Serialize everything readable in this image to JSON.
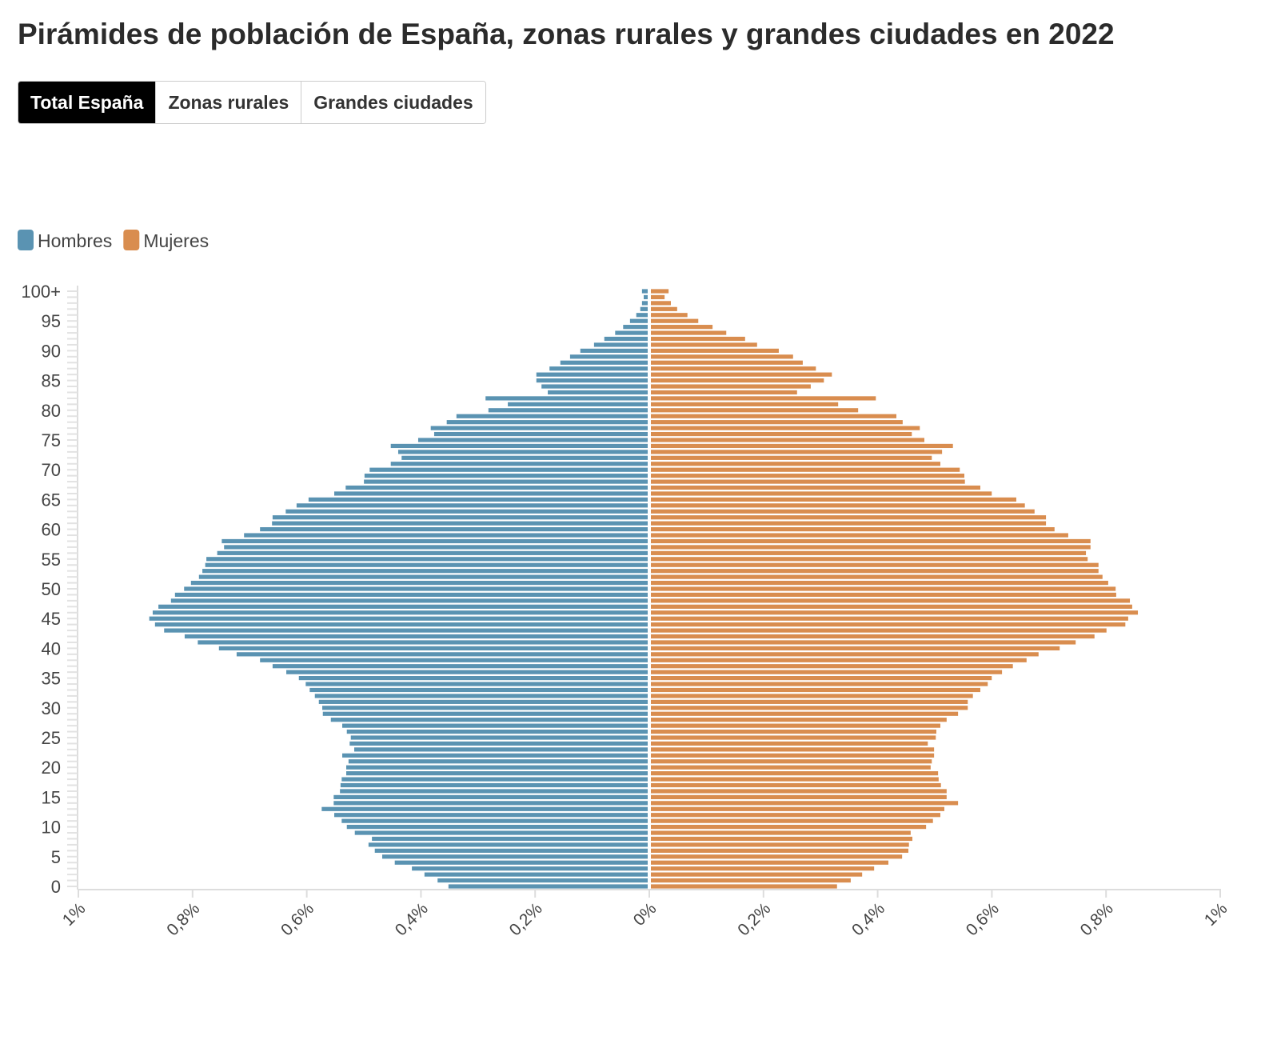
{
  "tabs": [
    "Total España",
    "Zonas rurales",
    "Grandes ciudades"
  ],
  "chart_data": {
    "type": "pyramid",
    "title": "Pirámides de población de España, zonas rurales y grandes ciudades en 2022",
    "categories": [
      "0",
      null,
      null,
      null,
      null,
      "5",
      null,
      null,
      null,
      null,
      "10",
      null,
      null,
      null,
      null,
      "15",
      null,
      null,
      null,
      null,
      "20",
      null,
      null,
      null,
      null,
      "25",
      null,
      null,
      null,
      null,
      "30",
      null,
      null,
      null,
      null,
      "35",
      null,
      null,
      null,
      null,
      "40",
      null,
      null,
      null,
      null,
      "45",
      null,
      null,
      null,
      null,
      "50",
      null,
      null,
      null,
      null,
      "55",
      null,
      null,
      null,
      null,
      "60",
      null,
      null,
      null,
      null,
      "65",
      null,
      null,
      null,
      null,
      "70",
      null,
      null,
      null,
      null,
      "75",
      null,
      null,
      null,
      null,
      "80",
      null,
      null,
      null,
      null,
      "85",
      null,
      null,
      null,
      null,
      "90",
      null,
      null,
      null,
      null,
      "95",
      null,
      null,
      null,
      null,
      "100+"
    ],
    "series": [
      {
        "name": "Hombres",
        "color": "#5a93b2",
        "side": "left",
        "values": [
          0.349,
          0.368,
          0.391,
          0.413,
          0.443,
          0.465,
          0.478,
          0.489,
          0.483,
          0.513,
          0.527,
          0.536,
          0.549,
          0.571,
          0.55,
          0.55,
          0.539,
          0.538,
          0.536,
          0.528,
          0.528,
          0.524,
          0.535,
          0.514,
          0.522,
          0.52,
          0.527,
          0.535,
          0.555,
          0.569,
          0.57,
          0.576,
          0.583,
          0.592,
          0.599,
          0.611,
          0.633,
          0.657,
          0.679,
          0.72,
          0.751,
          0.788,
          0.811,
          0.847,
          0.863,
          0.873,
          0.867,
          0.857,
          0.835,
          0.828,
          0.812,
          0.8,
          0.786,
          0.78,
          0.775,
          0.773,
          0.754,
          0.742,
          0.746,
          0.707,
          0.679,
          0.658,
          0.657,
          0.634,
          0.615,
          0.594,
          0.549,
          0.529,
          0.497,
          0.496,
          0.487,
          0.45,
          0.431,
          0.437,
          0.45,
          0.402,
          0.374,
          0.38,
          0.352,
          0.335,
          0.279,
          0.245,
          0.284,
          0.175,
          0.186,
          0.195,
          0.195,
          0.172,
          0.153,
          0.136,
          0.118,
          0.094,
          0.076,
          0.057,
          0.043,
          0.031,
          0.02,
          0.013,
          0.01,
          0.007,
          0.01
        ]
      },
      {
        "name": "Mujeres",
        "color": "#d98d4f",
        "side": "right",
        "values": [
          0.326,
          0.35,
          0.37,
          0.391,
          0.416,
          0.44,
          0.451,
          0.452,
          0.458,
          0.455,
          0.482,
          0.494,
          0.507,
          0.514,
          0.538,
          0.518,
          0.518,
          0.508,
          0.504,
          0.503,
          0.49,
          0.492,
          0.496,
          0.496,
          0.485,
          0.499,
          0.5,
          0.507,
          0.518,
          0.538,
          0.555,
          0.555,
          0.564,
          0.577,
          0.59,
          0.597,
          0.615,
          0.634,
          0.658,
          0.679,
          0.716,
          0.744,
          0.777,
          0.798,
          0.831,
          0.836,
          0.853,
          0.843,
          0.839,
          0.815,
          0.814,
          0.801,
          0.791,
          0.784,
          0.784,
          0.765,
          0.762,
          0.77,
          0.77,
          0.731,
          0.707,
          0.692,
          0.692,
          0.672,
          0.655,
          0.64,
          0.597,
          0.577,
          0.55,
          0.549,
          0.541,
          0.507,
          0.492,
          0.51,
          0.529,
          0.479,
          0.457,
          0.471,
          0.441,
          0.43,
          0.363,
          0.328,
          0.394,
          0.256,
          0.28,
          0.303,
          0.317,
          0.289,
          0.266,
          0.249,
          0.224,
          0.186,
          0.165,
          0.132,
          0.108,
          0.083,
          0.064,
          0.046,
          0.035,
          0.024,
          0.031
        ]
      }
    ],
    "xlim": [
      0,
      1
    ],
    "xticks_left": [
      {
        "value": 1,
        "label": "1%"
      },
      {
        "value": 0.8,
        "label": "0,8%"
      },
      {
        "value": 0.6,
        "label": "0,6%"
      },
      {
        "value": 0.4,
        "label": "0,4%"
      },
      {
        "value": 0.2,
        "label": "0,2%"
      }
    ],
    "xticks": [
      {
        "value": 0,
        "label": "0%"
      },
      {
        "value": 0.2,
        "label": "0,2%"
      },
      {
        "value": 0.4,
        "label": "0,4%"
      },
      {
        "value": 0.6,
        "label": "0,6%"
      },
      {
        "value": 0.8,
        "label": "0,8%"
      },
      {
        "value": 1,
        "label": "1%"
      }
    ],
    "legend": "top-left"
  }
}
